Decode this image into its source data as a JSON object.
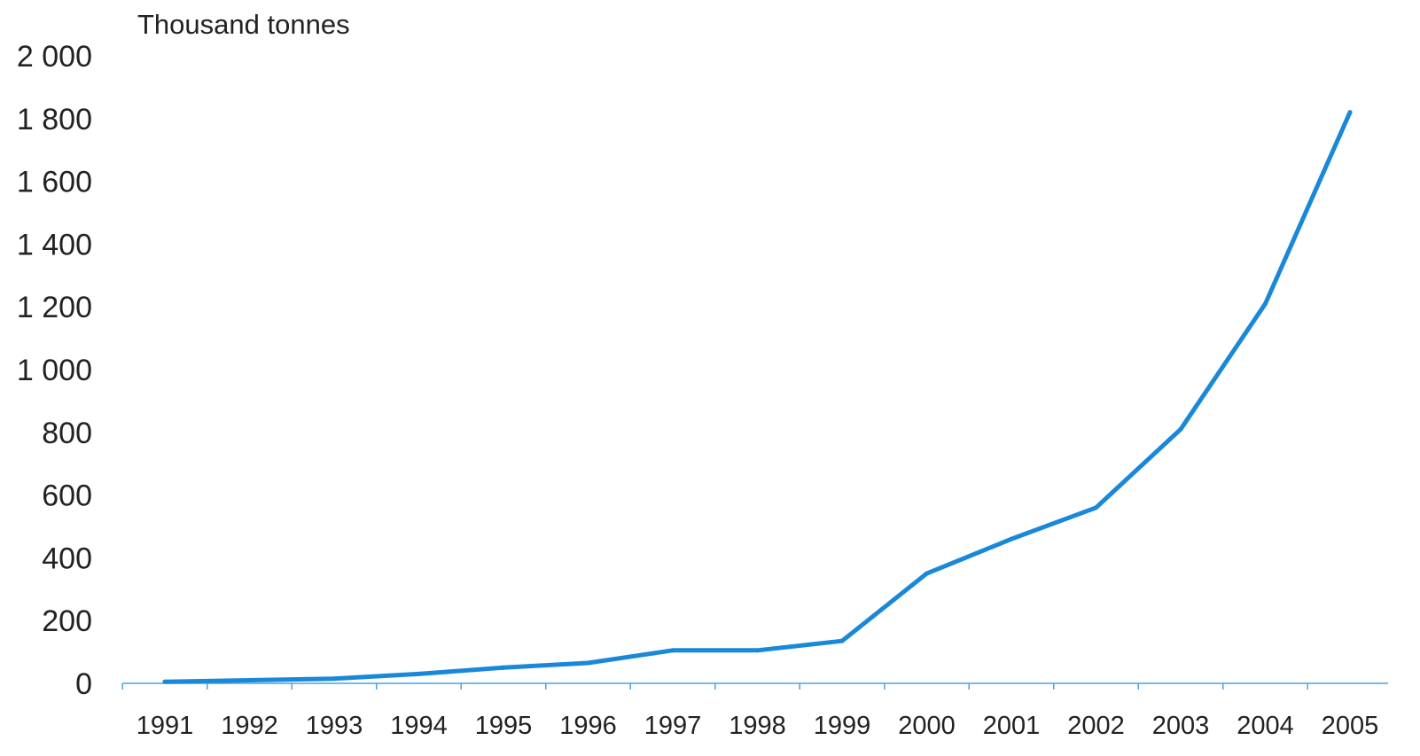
{
  "chart_data": {
    "type": "line",
    "title": "",
    "xlabel": "",
    "ylabel": "Thousand tonnes",
    "x": [
      "1991",
      "1992",
      "1993",
      "1994",
      "1995",
      "1996",
      "1997",
      "1998",
      "1999",
      "2000",
      "2001",
      "2002",
      "2003",
      "2004",
      "2005"
    ],
    "series": [
      {
        "values": [
          5,
          10,
          15,
          30,
          50,
          65,
          105,
          105,
          135,
          350,
          460,
          560,
          810,
          1210,
          1820
        ]
      }
    ],
    "ylim": [
      0,
      2000
    ],
    "y_ticks": [
      0,
      200,
      400,
      600,
      800,
      1000,
      1200,
      1400,
      1600,
      1800,
      2000
    ],
    "y_tick_labels": [
      "0",
      "200",
      "400",
      "600",
      "800",
      "1 000",
      "1 200",
      "1 400",
      "1 600",
      "1 800",
      "2 000"
    ],
    "grid": false,
    "legend": "none",
    "colors": {
      "line": "#1a88d8",
      "axis": "#4aa3e0",
      "text": "#222222"
    }
  }
}
